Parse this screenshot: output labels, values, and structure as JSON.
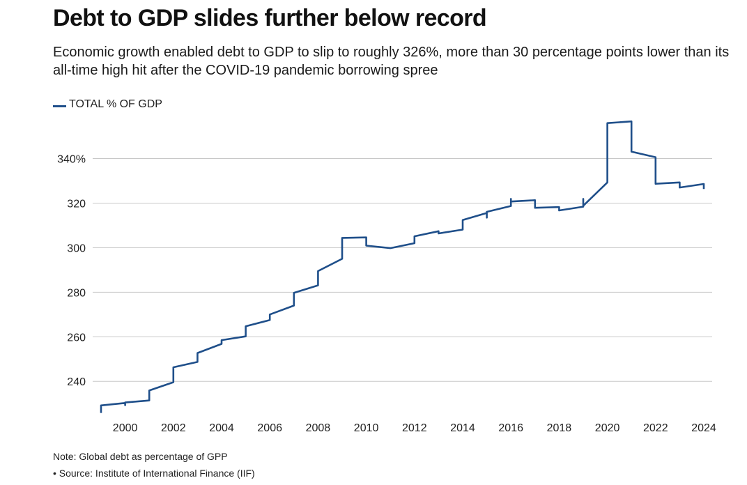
{
  "header": {
    "title": "Debt to GDP slides further below record",
    "subtitle": "Economic growth enabled debt to GDP to slip to roughly 326%, more than 30 percentage points lower than its all-time high hit after the COVID-19 pandemic borrowing spree"
  },
  "footer": {
    "note": "Note: Global debt as percentage of GPP",
    "source": "• Source: Institute of International Finance (IIF)"
  },
  "colors": {
    "series": "#1f4f8a",
    "grid": "#c8c8c8"
  },
  "chart_data": {
    "type": "line",
    "title": "Debt to GDP slides further below record",
    "xlabel": "",
    "ylabel": "",
    "legend": "top-left",
    "grid": true,
    "xlim": [
      1999,
      2024
    ],
    "ylim": [
      226,
      358
    ],
    "x_ticks": [
      2000,
      2002,
      2004,
      2006,
      2008,
      2010,
      2012,
      2014,
      2016,
      2018,
      2020,
      2022,
      2024
    ],
    "x_tick_labels": [
      "2000",
      "2002",
      "2004",
      "2006",
      "2008",
      "2010",
      "2012",
      "2014",
      "2016",
      "2018",
      "2020",
      "2022",
      "2024"
    ],
    "y_ticks": [
      240,
      260,
      280,
      300,
      320,
      340
    ],
    "y_tick_labels": [
      "240",
      "260",
      "280",
      "300",
      "320",
      "340%"
    ],
    "series": [
      {
        "name": "TOTAL % OF GDP",
        "points": [
          [
            1999.0,
            225.8
          ],
          [
            1999.0,
            229.2
          ],
          [
            2000.0,
            230.3
          ],
          [
            2000.0,
            229.3
          ],
          [
            2000.0,
            230.5
          ],
          [
            2001.0,
            231.4
          ],
          [
            2001.0,
            235.9
          ],
          [
            2002.0,
            239.6
          ],
          [
            2002.0,
            246.3
          ],
          [
            2003.0,
            248.7
          ],
          [
            2003.0,
            251.5
          ],
          [
            2003.0,
            252.7
          ],
          [
            2004.0,
            256.8
          ],
          [
            2004.0,
            258.5
          ],
          [
            2005.0,
            260.2
          ],
          [
            2005.0,
            264.7
          ],
          [
            2006.0,
            267.5
          ],
          [
            2006.0,
            270.0
          ],
          [
            2007.0,
            274.0
          ],
          [
            2007.0,
            279.7
          ],
          [
            2008.0,
            283.1
          ],
          [
            2008.0,
            289.5
          ],
          [
            2009.0,
            295.0
          ],
          [
            2009.0,
            304.4
          ],
          [
            2010.0,
            304.6
          ],
          [
            2010.0,
            300.9
          ],
          [
            2011.0,
            299.8
          ],
          [
            2012.0,
            302.0
          ],
          [
            2012.0,
            305.1
          ],
          [
            2013.0,
            307.4
          ],
          [
            2013.0,
            306.4
          ],
          [
            2014.0,
            308.1
          ],
          [
            2014.0,
            312.4
          ],
          [
            2015.0,
            315.6
          ],
          [
            2015.0,
            313.5
          ],
          [
            2015.0,
            316.1
          ],
          [
            2016.0,
            318.7
          ],
          [
            2016.0,
            321.9
          ],
          [
            2016.0,
            320.7
          ],
          [
            2017.0,
            321.3
          ],
          [
            2017.0,
            317.9
          ],
          [
            2018.0,
            318.2
          ],
          [
            2018.0,
            316.7
          ],
          [
            2019.0,
            318.4
          ],
          [
            2019.0,
            321.9
          ],
          [
            2019.0,
            318.8
          ],
          [
            2020.0,
            329.3
          ],
          [
            2020.0,
            355.9
          ],
          [
            2021.0,
            356.7
          ],
          [
            2021.0,
            343.1
          ],
          [
            2022.0,
            340.6
          ],
          [
            2022.0,
            328.7
          ],
          [
            2023.0,
            329.3
          ],
          [
            2023.0,
            327.0
          ],
          [
            2024.0,
            328.6
          ],
          [
            2024.0,
            326.3
          ]
        ]
      }
    ]
  }
}
